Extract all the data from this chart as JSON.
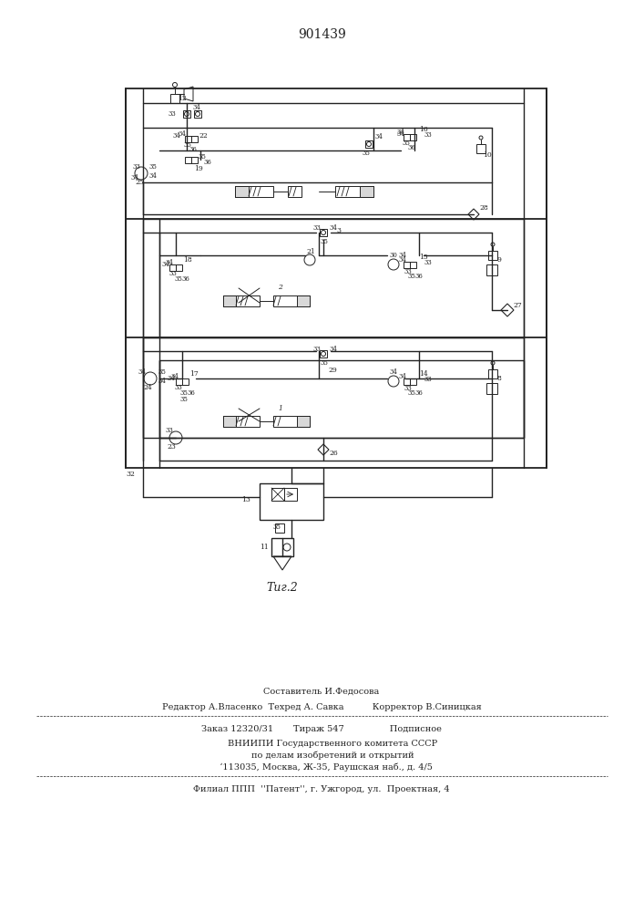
{
  "title": "901439",
  "fig_label": "Τиг.2",
  "background_color": "#ffffff",
  "line_color": "#222222",
  "footer_lines": [
    "Составитель И.Федосова",
    "Редактор А.Власенко  Техред А. Савка          Корректор В.Синицкая",
    "Заказ 12320/31       Тираж 547                Подписное",
    "        ВНИИПИ Государственного комитета СССР",
    "        по делам изобретений и открытий",
    "   ‘113035, Москва, Ж-35, Раушская наб., д. 4/5",
    "Филиал ППП  ''Патент'', г. Ужгород, ул.  Проектная, 4"
  ]
}
